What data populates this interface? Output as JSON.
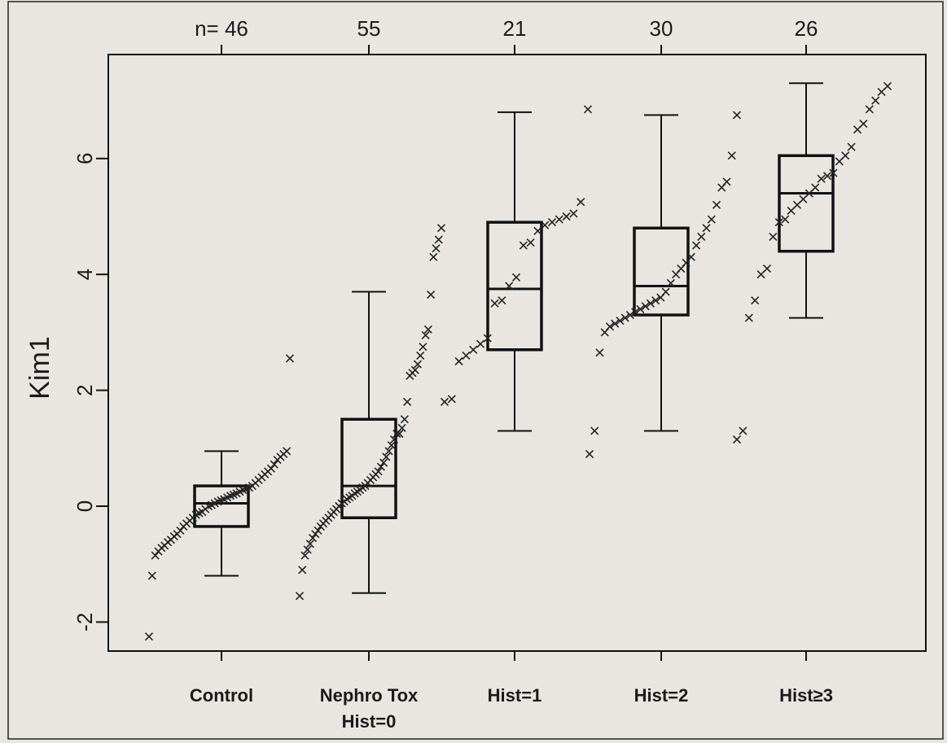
{
  "chart_data": {
    "type": "box",
    "title": "",
    "xlabel": "",
    "ylabel": "Kim1",
    "ylim": [
      -2.5,
      7.5
    ],
    "yticks": [
      -2,
      0,
      2,
      4,
      6
    ],
    "ytick_labels": [
      "-2",
      "0",
      "2",
      "4",
      "6"
    ],
    "top_counts": [
      "n= 46",
      "55",
      "21",
      "30",
      "26"
    ],
    "groups": [
      {
        "label_lines": [
          "Control"
        ],
        "n": 46,
        "box": {
          "whisker_low": -1.2,
          "q1": -0.35,
          "median": 0.05,
          "q3": 0.35,
          "whisker_high": 0.95
        },
        "points": [
          -2.25,
          -1.2,
          -0.85,
          -0.78,
          -0.72,
          -0.68,
          -0.62,
          -0.58,
          -0.52,
          -0.48,
          -0.42,
          -0.35,
          -0.3,
          -0.25,
          -0.2,
          -0.15,
          -0.12,
          -0.1,
          -0.05,
          0.0,
          0.02,
          0.05,
          0.08,
          0.1,
          0.12,
          0.15,
          0.18,
          0.2,
          0.22,
          0.25,
          0.28,
          0.3,
          0.32,
          0.35,
          0.4,
          0.45,
          0.5,
          0.55,
          0.6,
          0.65,
          0.72,
          0.8,
          0.85,
          0.9,
          0.95,
          2.55
        ]
      },
      {
        "label_lines": [
          "Nephro Tox",
          "Hist=0"
        ],
        "n": 55,
        "box": {
          "whisker_low": -1.5,
          "q1": -0.2,
          "median": 0.35,
          "q3": 1.5,
          "whisker_high": 3.7
        },
        "points": [
          -1.55,
          -1.1,
          -0.85,
          -0.75,
          -0.65,
          -0.55,
          -0.48,
          -0.42,
          -0.35,
          -0.3,
          -0.25,
          -0.2,
          -0.15,
          -0.1,
          -0.05,
          0.0,
          0.05,
          0.08,
          0.12,
          0.15,
          0.18,
          0.22,
          0.25,
          0.28,
          0.32,
          0.35,
          0.4,
          0.45,
          0.5,
          0.55,
          0.6,
          0.68,
          0.75,
          0.85,
          0.95,
          1.05,
          1.15,
          1.25,
          1.35,
          1.5,
          1.8,
          2.25,
          2.3,
          2.35,
          2.45,
          2.6,
          2.75,
          2.95,
          3.05,
          3.65,
          4.3,
          4.45,
          4.6,
          4.8,
          1.25
        ]
      },
      {
        "label_lines": [
          "Hist=1"
        ],
        "n": 21,
        "box": {
          "whisker_low": 1.3,
          "q1": 2.7,
          "median": 3.75,
          "q3": 4.9,
          "whisker_high": 6.8
        },
        "points": [
          1.8,
          1.85,
          2.5,
          2.6,
          2.7,
          2.8,
          2.9,
          3.5,
          3.55,
          3.8,
          3.95,
          4.5,
          4.55,
          4.75,
          4.85,
          4.9,
          4.95,
          5.0,
          5.05,
          5.25,
          6.85
        ]
      },
      {
        "label_lines": [
          "Hist=2"
        ],
        "n": 30,
        "box": {
          "whisker_low": 1.3,
          "q1": 3.3,
          "median": 3.8,
          "q3": 4.8,
          "whisker_high": 6.75
        },
        "points": [
          0.9,
          1.3,
          2.65,
          3.0,
          3.1,
          3.15,
          3.2,
          3.25,
          3.3,
          3.35,
          3.4,
          3.45,
          3.5,
          3.55,
          3.6,
          3.7,
          3.85,
          4.0,
          4.1,
          4.2,
          4.3,
          4.5,
          4.65,
          4.8,
          4.95,
          5.2,
          5.5,
          5.6,
          6.05,
          6.75
        ]
      },
      {
        "label_lines": [
          "Hist≥3"
        ],
        "n": 26,
        "box": {
          "whisker_low": 3.25,
          "q1": 4.4,
          "median": 5.4,
          "q3": 6.05,
          "whisker_high": 7.3
        },
        "points": [
          1.15,
          1.3,
          3.25,
          3.55,
          4.0,
          4.1,
          4.65,
          4.9,
          4.95,
          5.1,
          5.2,
          5.3,
          5.4,
          5.5,
          5.65,
          5.7,
          5.75,
          5.95,
          6.05,
          6.2,
          6.5,
          6.6,
          6.85,
          7.0,
          7.15,
          7.25
        ]
      }
    ]
  }
}
